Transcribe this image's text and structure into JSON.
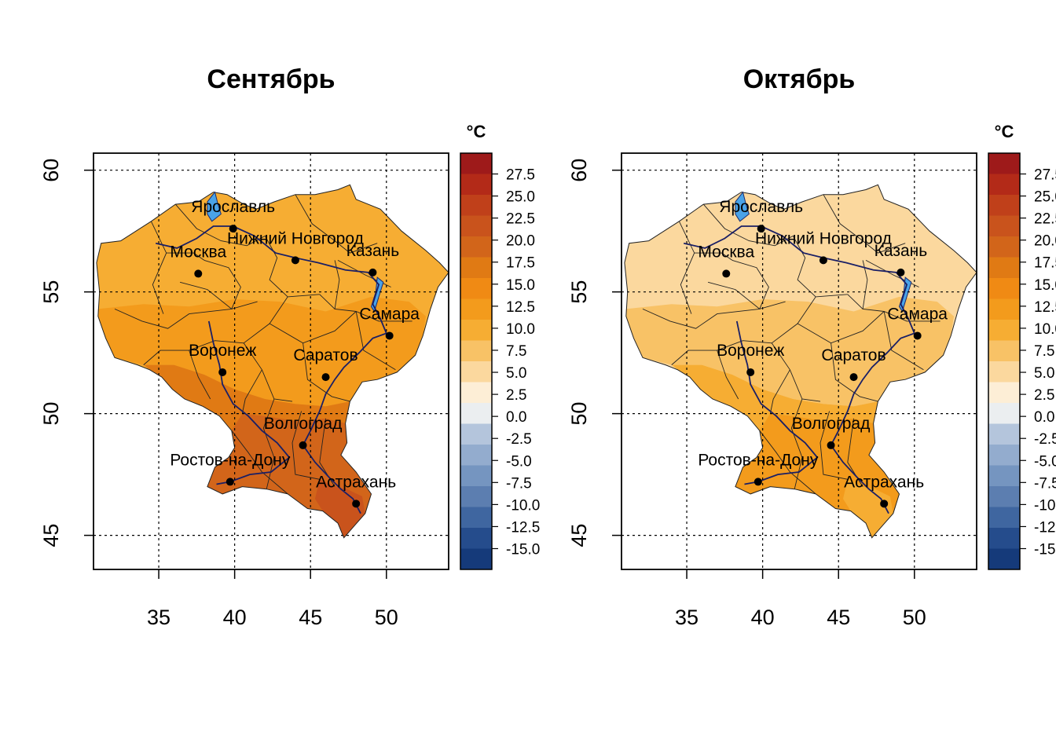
{
  "colorbar": {
    "unit": "°C",
    "tick_labels": [
      "27.5",
      "25.0",
      "22.5",
      "20.0",
      "17.5",
      "15.0",
      "12.5",
      "10.0",
      "7.5",
      "5.0",
      "2.5",
      "0.0",
      "-2.5",
      "-5.0",
      "-7.5",
      "-10.0",
      "-12.5",
      "-15.0"
    ],
    "colors": [
      "#9e1a1a",
      "#b32a18",
      "#c0401a",
      "#c9531c",
      "#d2651a",
      "#e07a14",
      "#f08a14",
      "#f39b1c",
      "#f6ad33",
      "#f8c266",
      "#fbd89e",
      "#fdeed6",
      "#ebeef0",
      "#b4c5dc",
      "#93acce",
      "#7595c0",
      "#5c7eb0",
      "#3f66a0",
      "#254c8c",
      "#153a7a"
    ]
  },
  "axes": {
    "x_ticks": [
      "35",
      "40",
      "45",
      "50"
    ],
    "y_ticks": [
      "60",
      "55",
      "50",
      "45"
    ],
    "xlim": [
      30.7,
      54.1
    ],
    "ylim": [
      43.6,
      60.7
    ]
  },
  "cities": [
    {
      "name": "Ярославль",
      "lon": 39.9,
      "lat": 57.6
    },
    {
      "name": "Нижний Новгород",
      "lon": 44.0,
      "lat": 56.3
    },
    {
      "name": "Москва",
      "lon": 37.6,
      "lat": 55.75
    },
    {
      "name": "Казань",
      "lon": 49.1,
      "lat": 55.8
    },
    {
      "name": "Самара",
      "lon": 50.2,
      "lat": 53.2
    },
    {
      "name": "Воронеж",
      "lon": 39.2,
      "lat": 51.7
    },
    {
      "name": "Саратов",
      "lon": 46.0,
      "lat": 51.5
    },
    {
      "name": "Волгоград",
      "lon": 44.5,
      "lat": 48.7
    },
    {
      "name": "Ростов-на-Дону",
      "lon": 39.7,
      "lat": 47.2
    },
    {
      "name": "Астрахань",
      "lon": 48.0,
      "lat": 46.3
    }
  ],
  "panels": [
    {
      "title": "Сентябрь",
      "fills": {
        "north": "#f6ad33",
        "central": "#f39b1c",
        "south": "#e07a14",
        "far_south": "#d2651a",
        "delta": "#c9531c"
      }
    },
    {
      "title": "Октябрь",
      "fills": {
        "north": "#fbd89e",
        "central": "#f8c266",
        "south": "#f6ad33",
        "far_south": "#f39b1c",
        "delta": "#f6ad33"
      }
    }
  ]
}
